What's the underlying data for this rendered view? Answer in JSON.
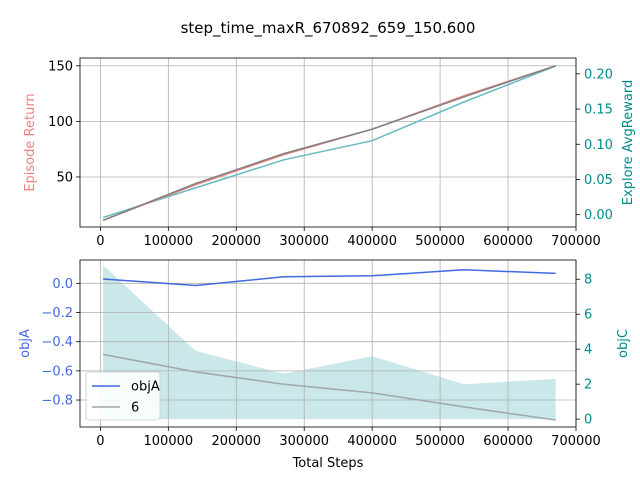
{
  "figure_title": "step_time_maxR_670892_659_150.600",
  "chart_data": [
    {
      "type": "line",
      "panel": "top",
      "xlim": [
        -30000,
        700000
      ],
      "xticks": [
        0,
        100000,
        200000,
        300000,
        400000,
        500000,
        600000,
        700000
      ],
      "xtick_labels": [
        "0",
        "100000",
        "200000",
        "300000",
        "400000",
        "500000",
        "600000",
        "700000"
      ],
      "grid": true,
      "left_axis": {
        "label": "Episode Return",
        "color": "#f08080",
        "ylim": [
          5,
          157
        ],
        "ticks": [
          50,
          100,
          150
        ],
        "tick_labels": [
          "50",
          "100",
          "150"
        ]
      },
      "right_axis": {
        "label": "Explore AvgReward",
        "color": "#008b8b",
        "ylim": [
          -0.0175,
          0.2225
        ],
        "ticks": [
          0.0,
          0.05,
          0.1,
          0.15,
          0.2
        ],
        "tick_labels": [
          "0.00",
          "0.05",
          "0.10",
          "0.15",
          "0.20"
        ]
      },
      "series": [
        {
          "axis": "right",
          "color": "#66bbc2",
          "x": [
            4000,
            140000,
            270000,
            400000,
            535000,
            670000
          ],
          "y": [
            -0.004,
            0.038,
            0.078,
            0.105,
            0.16,
            0.211
          ]
        },
        {
          "axis": "left",
          "color": "#f08080",
          "x": [
            4000,
            140000,
            270000,
            400000,
            535000,
            670000
          ],
          "y": [
            11,
            43,
            70,
            93,
            123,
            150
          ]
        },
        {
          "axis": "left",
          "color": "#808080",
          "x": [
            4000,
            140000,
            270000,
            400000,
            535000,
            670000
          ],
          "y": [
            11,
            44,
            71,
            93,
            122,
            150
          ]
        }
      ]
    },
    {
      "type": "line",
      "panel": "bottom",
      "xlabel": "Total Steps",
      "xlim": [
        -30000,
        700000
      ],
      "xticks": [
        0,
        100000,
        200000,
        300000,
        400000,
        500000,
        600000,
        700000
      ],
      "xtick_labels": [
        "0",
        "100000",
        "200000",
        "300000",
        "400000",
        "500000",
        "600000",
        "700000"
      ],
      "grid": true,
      "left_axis": {
        "label": "objA",
        "color": "#4169e1",
        "ylim": [
          -0.985,
          0.16
        ],
        "ticks": [
          0.0,
          -0.2,
          -0.4,
          -0.6,
          -0.8
        ],
        "tick_labels": [
          "0.0",
          "−0.2",
          "−0.4",
          "−0.6",
          "−0.8"
        ]
      },
      "right_axis": {
        "label": "objC",
        "color": "#008b8b",
        "ylim": [
          -0.45,
          9.1
        ],
        "ticks": [
          0,
          2,
          4,
          6,
          8
        ],
        "tick_labels": [
          "0",
          "2",
          "4",
          "6",
          "8"
        ]
      },
      "area": {
        "axis": "right",
        "color": "#66bbc2",
        "opacity": 0.35,
        "x": [
          4000,
          140000,
          270000,
          400000,
          535000,
          670000
        ],
        "upper": [
          8.8,
          3.9,
          2.6,
          3.6,
          2.0,
          2.3
        ],
        "lower": [
          0,
          0,
          0,
          0,
          0,
          0
        ]
      },
      "series": [
        {
          "name": "objA",
          "axis": "left",
          "color": "#4169e1",
          "x": [
            4000,
            140000,
            270000,
            400000,
            535000,
            670000
          ],
          "y": [
            0.03,
            -0.015,
            0.045,
            0.052,
            0.093,
            0.068
          ]
        },
        {
          "name": "6",
          "axis": "right",
          "color": "#a0a8a8",
          "x": [
            4000,
            140000,
            270000,
            400000,
            535000,
            670000
          ],
          "y": [
            3.7,
            2.7,
            2.0,
            1.5,
            0.7,
            -0.05
          ]
        }
      ],
      "legend": {
        "placement": "lower-left",
        "entries": [
          "objA",
          "6"
        ]
      }
    }
  ]
}
